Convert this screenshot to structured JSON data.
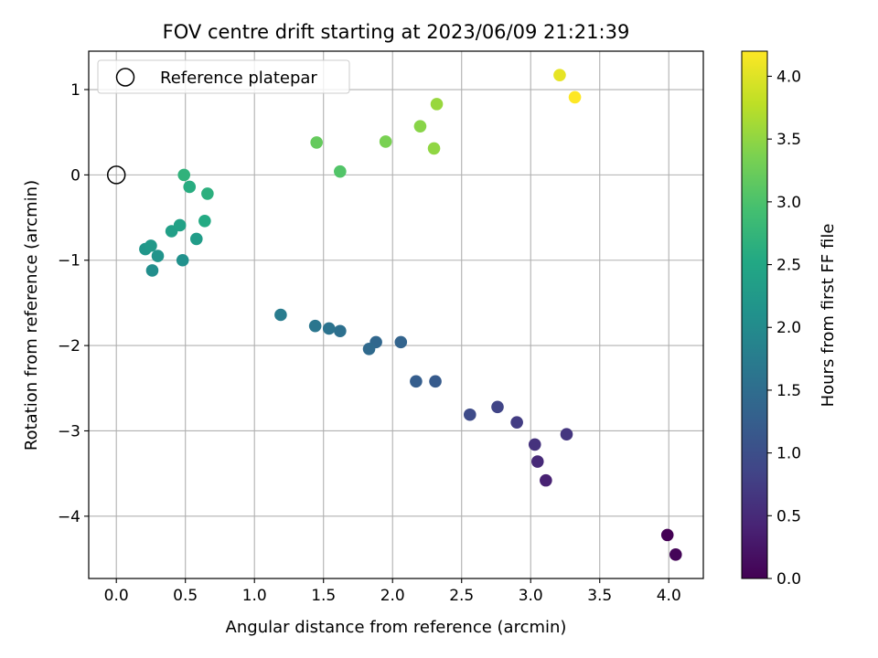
{
  "chart_data": {
    "type": "scatter",
    "title": "FOV centre drift starting at 2023/06/09 21:21:39",
    "xlabel": "Angular distance from reference (arcmin)",
    "ylabel": "Rotation from reference (arcmin)",
    "xlim": [
      -0.2,
      4.25
    ],
    "ylim": [
      -4.73,
      1.45
    ],
    "xticks": [
      0.0,
      0.5,
      1.0,
      1.5,
      2.0,
      2.5,
      3.0,
      3.5,
      4.0
    ],
    "xtick_labels": [
      "0.0",
      "0.5",
      "1.0",
      "1.5",
      "2.0",
      "2.5",
      "3.0",
      "3.5",
      "4.0"
    ],
    "yticks": [
      1,
      0,
      -1,
      -2,
      -3,
      -4
    ],
    "ytick_labels": [
      "1",
      "0",
      "−1",
      "−2",
      "−3",
      "−4"
    ],
    "grid": true,
    "legend": {
      "position": "upper-left",
      "entries": [
        {
          "label": "Reference platepar",
          "marker": "open-circle",
          "x": 0.0,
          "y": 0.0
        }
      ]
    },
    "colorbar": {
      "label": "Hours from first FF file",
      "colormap": "viridis",
      "range": [
        0.0,
        4.2
      ],
      "ticks": [
        0.0,
        0.5,
        1.0,
        1.5,
        2.0,
        2.5,
        3.0,
        3.5,
        4.0
      ],
      "tick_labels": [
        "0.0",
        "0.5",
        "1.0",
        "1.5",
        "2.0",
        "2.5",
        "3.0",
        "3.5",
        "4.0"
      ]
    },
    "points": [
      {
        "x": 3.99,
        "y": -4.22,
        "hours": 0.0
      },
      {
        "x": 4.05,
        "y": -4.45,
        "hours": 0.05
      },
      {
        "x": 3.11,
        "y": -3.58,
        "hours": 0.4
      },
      {
        "x": 3.05,
        "y": -3.36,
        "hours": 0.5
      },
      {
        "x": 3.03,
        "y": -3.16,
        "hours": 0.6
      },
      {
        "x": 3.26,
        "y": -3.04,
        "hours": 0.65
      },
      {
        "x": 2.9,
        "y": -2.9,
        "hours": 0.75
      },
      {
        "x": 2.76,
        "y": -2.72,
        "hours": 0.85
      },
      {
        "x": 2.56,
        "y": -2.81,
        "hours": 0.95
      },
      {
        "x": 2.31,
        "y": -2.42,
        "hours": 1.2
      },
      {
        "x": 2.17,
        "y": -2.42,
        "hours": 1.25
      },
      {
        "x": 2.06,
        "y": -1.96,
        "hours": 1.35
      },
      {
        "x": 1.88,
        "y": -1.96,
        "hours": 1.4
      },
      {
        "x": 1.83,
        "y": -2.04,
        "hours": 1.45
      },
      {
        "x": 1.62,
        "y": -1.83,
        "hours": 1.55
      },
      {
        "x": 1.54,
        "y": -1.8,
        "hours": 1.6
      },
      {
        "x": 1.44,
        "y": -1.77,
        "hours": 1.65
      },
      {
        "x": 1.19,
        "y": -1.64,
        "hours": 1.75
      },
      {
        "x": 0.26,
        "y": -1.12,
        "hours": 2.05
      },
      {
        "x": 0.48,
        "y": -1.0,
        "hours": 2.1
      },
      {
        "x": 0.3,
        "y": -0.95,
        "hours": 2.15
      },
      {
        "x": 0.21,
        "y": -0.87,
        "hours": 2.2
      },
      {
        "x": 0.25,
        "y": -0.83,
        "hours": 2.25
      },
      {
        "x": 0.58,
        "y": -0.75,
        "hours": 2.3
      },
      {
        "x": 0.4,
        "y": -0.66,
        "hours": 2.35
      },
      {
        "x": 0.46,
        "y": -0.59,
        "hours": 2.4
      },
      {
        "x": 0.64,
        "y": -0.54,
        "hours": 2.55
      },
      {
        "x": 0.53,
        "y": -0.14,
        "hours": 2.6
      },
      {
        "x": 0.66,
        "y": -0.22,
        "hours": 2.65
      },
      {
        "x": 0.49,
        "y": 0.0,
        "hours": 2.7
      },
      {
        "x": 1.62,
        "y": 0.04,
        "hours": 3.05
      },
      {
        "x": 1.45,
        "y": 0.38,
        "hours": 3.2
      },
      {
        "x": 1.95,
        "y": 0.39,
        "hours": 3.35
      },
      {
        "x": 2.2,
        "y": 0.57,
        "hours": 3.45
      },
      {
        "x": 2.3,
        "y": 0.31,
        "hours": 3.5
      },
      {
        "x": 2.32,
        "y": 0.83,
        "hours": 3.55
      },
      {
        "x": 3.21,
        "y": 1.17,
        "hours": 4.05
      },
      {
        "x": 3.32,
        "y": 0.91,
        "hours": 4.2
      }
    ]
  }
}
